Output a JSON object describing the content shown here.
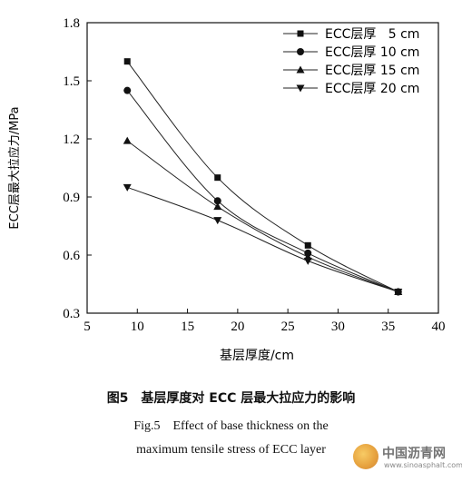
{
  "chart_data": {
    "type": "line",
    "xlabel": "基层厚度/cm",
    "ylabel": "ECC层最大拉应力/MPa",
    "xlim": [
      5,
      40
    ],
    "ylim": [
      0.3,
      1.8
    ],
    "xticks": [
      5,
      10,
      15,
      20,
      25,
      30,
      35,
      40
    ],
    "yticks": [
      0.3,
      0.6,
      0.9,
      1.2,
      1.5,
      1.8
    ],
    "ytick_labels": [
      "0.3",
      "0.6",
      "0.9",
      "1.2",
      "1.5",
      "1.8"
    ],
    "grid": false,
    "legend_position": "top-right",
    "x": [
      9,
      18,
      27,
      36
    ],
    "series": [
      {
        "name": "ECC层厚   5 cm",
        "marker": "square",
        "values": [
          1.6,
          1.0,
          0.65,
          0.41
        ]
      },
      {
        "name": "ECC层厚 10 cm",
        "marker": "circle",
        "values": [
          1.45,
          0.88,
          0.61,
          0.41
        ]
      },
      {
        "name": "ECC层厚 15 cm",
        "marker": "triangle-up",
        "values": [
          1.19,
          0.85,
          0.59,
          0.41
        ]
      },
      {
        "name": "ECC层厚 20 cm",
        "marker": "triangle-down",
        "values": [
          0.95,
          0.78,
          0.57,
          0.41
        ]
      }
    ]
  },
  "caption": {
    "cn": "图5　基层厚度对 ECC 层最大拉应力的影响",
    "en_line1": "Fig.5　Effect of base thickness on the",
    "en_line2": "maximum tensile stress of ECC layer"
  },
  "watermark": {
    "text": "中国沥青网",
    "url": "www.sinoasphalt.com",
    "logo_icon": "asphalt-logo-icon"
  }
}
